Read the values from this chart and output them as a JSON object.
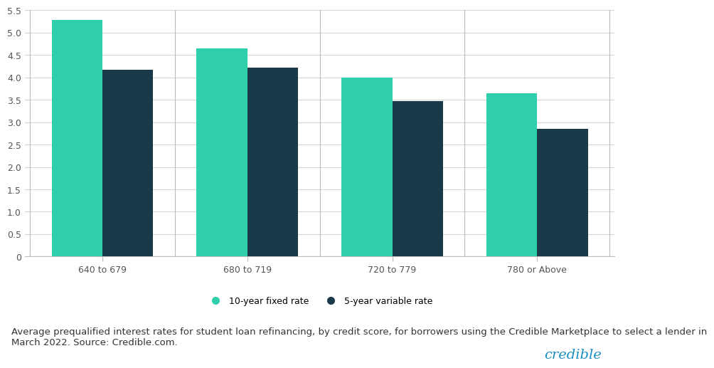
{
  "categories": [
    "640 to 679",
    "680 to 719",
    "720 to 779",
    "780 or Above"
  ],
  "fixed_rate": [
    5.28,
    4.65,
    4.0,
    3.65
  ],
  "variable_rate": [
    4.17,
    4.22,
    3.47,
    2.85
  ],
  "fixed_color": "#2ecfaa",
  "variable_color": "#1a3a4a",
  "background_color": "#ffffff",
  "ylim": [
    0,
    5.5
  ],
  "yticks": [
    0,
    0.5,
    1.0,
    1.5,
    2.0,
    2.5,
    3.0,
    3.5,
    4.0,
    4.5,
    5.0,
    5.5
  ],
  "legend_label_fixed": "10-year fixed rate",
  "legend_label_variable": "5-year variable rate",
  "caption": "Average prequalified interest rates for student loan refinancing, by credit score, for borrowers using the Credible Marketplace to select a lender in\nMarch 2022. Source: Credible.com.",
  "brand": "credible",
  "brand_color": "#1a8fc1",
  "bar_width": 0.35,
  "grid_color": "#d5d5d5",
  "tick_label_color": "#555555",
  "caption_fontsize": 9.5,
  "legend_fontsize": 9,
  "brand_fontsize": 14
}
